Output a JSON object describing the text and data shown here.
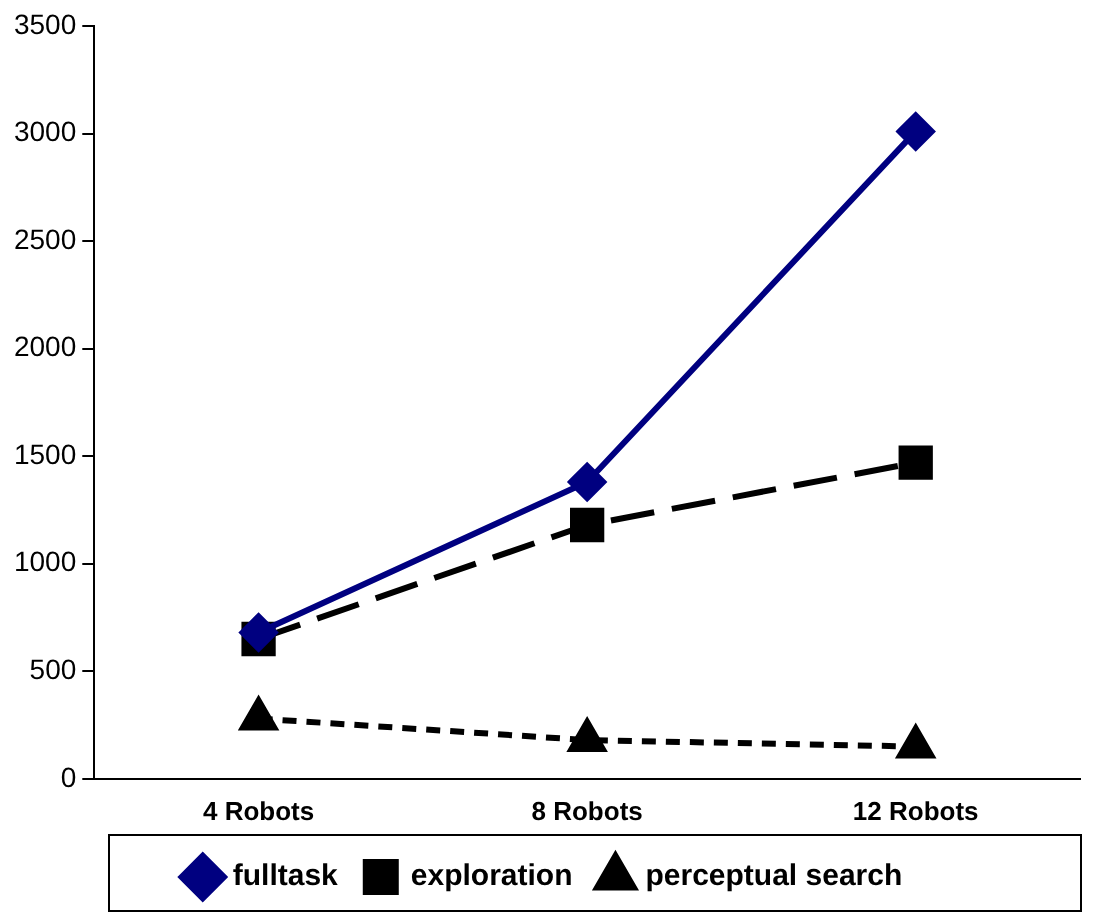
{
  "chart_data": {
    "type": "line",
    "categories": [
      "4 Robots",
      "8 Robots",
      "12 Robots"
    ],
    "series": [
      {
        "name": "fulltask",
        "color": "#000080",
        "values": [
          680,
          1380,
          3010
        ],
        "marker": "diamond",
        "line_style": "solid"
      },
      {
        "name": "exploration",
        "color": "#000000",
        "values": [
          650,
          1180,
          1470
        ],
        "marker": "square",
        "line_style": "dashed"
      },
      {
        "name": "perceptual search",
        "color": "#000000",
        "values": [
          280,
          180,
          150
        ],
        "marker": "triangle",
        "line_style": "dotted"
      }
    ],
    "ylim": [
      0,
      3500
    ],
    "yticks": [
      0,
      500,
      1000,
      1500,
      2000,
      2500,
      3000,
      3500
    ],
    "grid": false,
    "legend": "bottom"
  }
}
